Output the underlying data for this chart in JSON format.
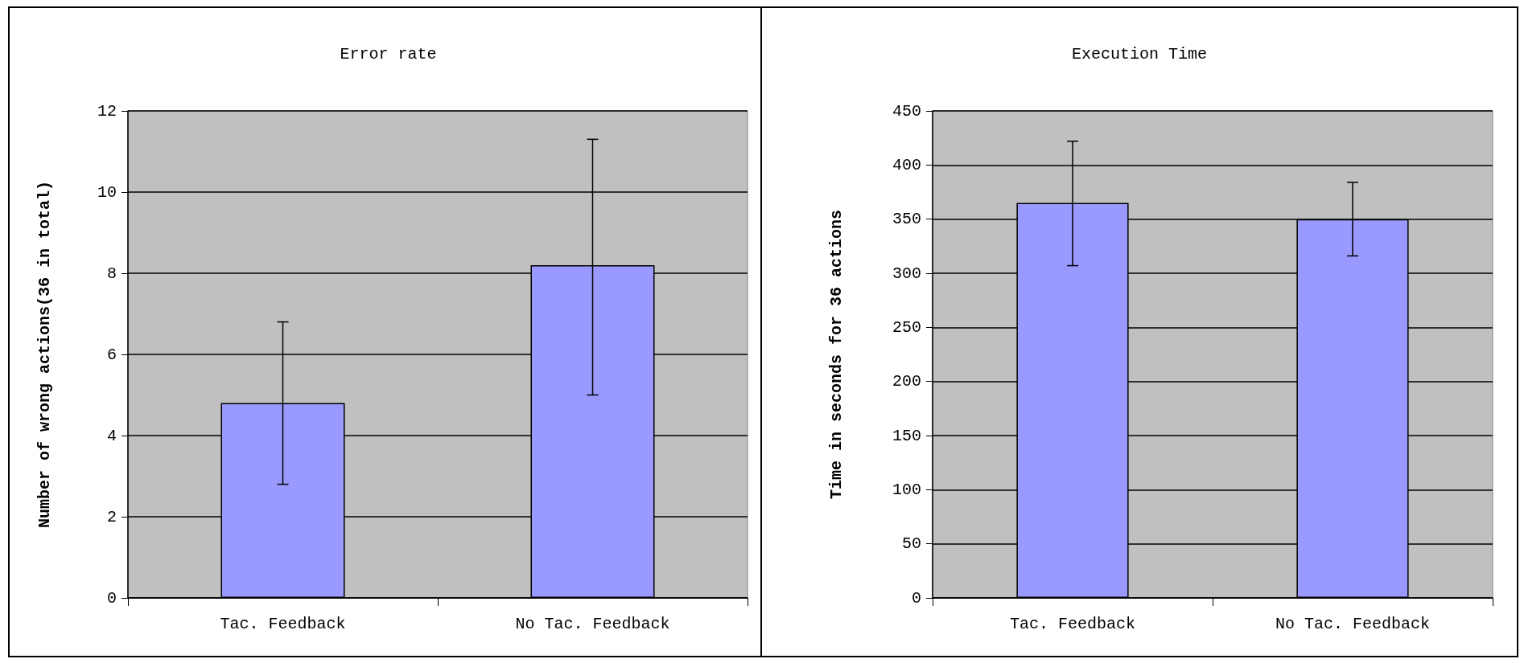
{
  "chart_data": [
    {
      "type": "bar",
      "title": "Error rate",
      "ylabel": "Number of wrong actions(36 in total)",
      "categories": [
        "Tac. Feedback",
        "No Tac. Feedback"
      ],
      "values": [
        4.8,
        8.2
      ],
      "color": "#9999ff",
      "errors": [
        [
          2.8,
          6.8
        ],
        [
          5.0,
          11.3
        ]
      ],
      "ylim": [
        0,
        12
      ],
      "yticks": [
        0,
        2,
        4,
        6,
        8,
        10,
        12
      ],
      "grid": "y"
    },
    {
      "type": "bar",
      "title": "Execution Time",
      "ylabel": "Time in seconds for 36 actions",
      "categories": [
        "Tac. Feedback",
        "No Tac. Feedback"
      ],
      "values": [
        365,
        350
      ],
      "color": "#9999ff",
      "errors": [
        [
          307,
          422
        ],
        [
          316,
          384
        ]
      ],
      "ylim": [
        0,
        450
      ],
      "yticks": [
        0,
        50,
        100,
        150,
        200,
        250,
        300,
        350,
        400,
        450
      ],
      "grid": "y"
    }
  ]
}
